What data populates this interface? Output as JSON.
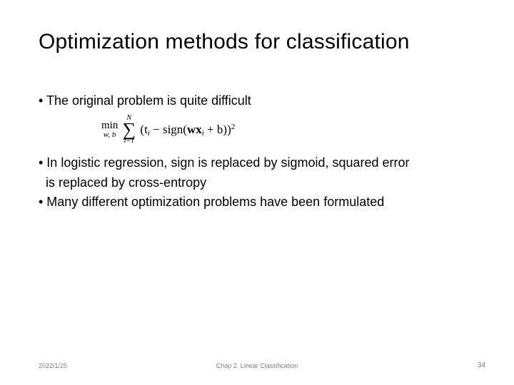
{
  "title": "Optimization methods for classification",
  "bullets": {
    "b1": "• The original problem is quite difficult",
    "b2": "• In logistic regression, sign is replaced by sigmoid, squared error",
    "b2_cont": "  is replaced by cross-entropy",
    "b3": "• Many different optimization problems have been formulated"
  },
  "formula": {
    "min_label": "min",
    "min_sub": "w, b",
    "sum_top": "N",
    "sum_sym": "∑",
    "sum_bot": "i=1",
    "open": "(",
    "t": "t",
    "i": "i",
    "minus_sign": " − sign(",
    "wx": "wx",
    "plus_b": " + b",
    "close_inner": ")",
    "close_outer": ")",
    "sq": "2"
  },
  "footer": {
    "date": "2022/1/25",
    "center": "Chap 2. Linear Classification",
    "page": "34"
  },
  "colors": {
    "text": "#000000",
    "footer": "#7f7f7f",
    "background": "#ffffff"
  }
}
